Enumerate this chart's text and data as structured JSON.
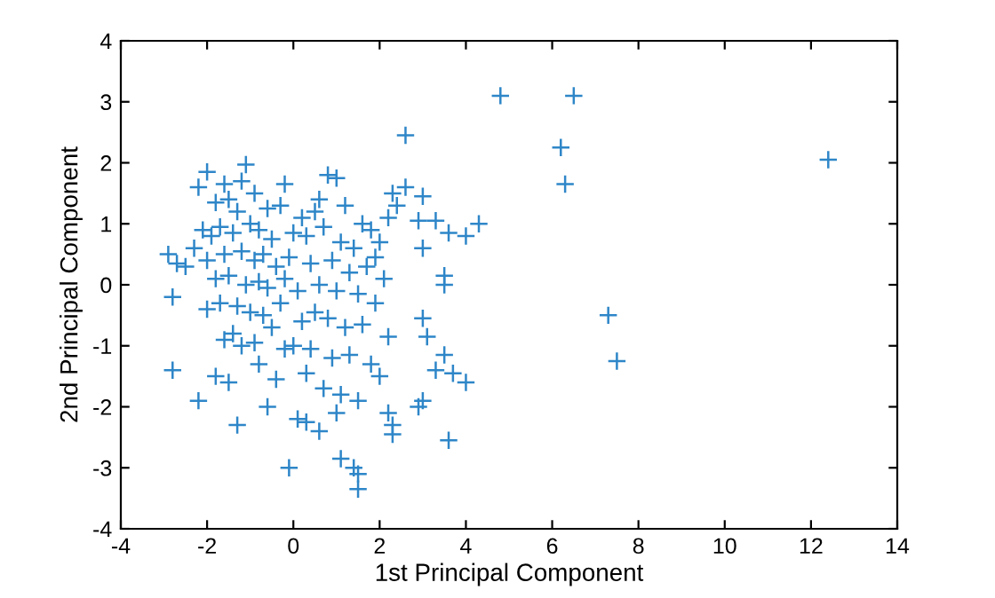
{
  "chart_data": {
    "type": "scatter",
    "xlabel": "1st Principal Component",
    "ylabel": "2nd Principal Component",
    "xlim": [
      -4,
      14
    ],
    "ylim": [
      -4,
      4
    ],
    "xticks": [
      -4,
      -2,
      0,
      2,
      4,
      6,
      8,
      10,
      12,
      14
    ],
    "yticks": [
      -4,
      -3,
      -2,
      -1,
      0,
      1,
      2,
      3,
      4
    ],
    "marker": "cross",
    "grid": false,
    "legend": false,
    "series": [
      {
        "color": "#2e86c8",
        "x": [
          4.8,
          6.5,
          6.2,
          6.3,
          12.4,
          7.3,
          7.5,
          2.6,
          4.3,
          4.0,
          3.6,
          2.3,
          2.6,
          3.0,
          2.9,
          3.3,
          2.2,
          2.4,
          3.0,
          3.5,
          3.5,
          3.0,
          3.1,
          3.5,
          3.7,
          4.0,
          3.3,
          3.0,
          2.9,
          3.6,
          2.2,
          2.3,
          2.3,
          1.4,
          1.5,
          1.5,
          1.1,
          -0.1,
          -2.8,
          -2.2,
          -2.9,
          -2.8,
          -2.5,
          -2.7,
          -1.1,
          -1.6,
          -2.2,
          -2.0,
          -0.2,
          -1.2,
          0.8,
          1.0,
          0.6,
          -0.9,
          -1.5,
          -1.8,
          -1.3,
          -0.6,
          -0.3,
          0.2,
          0.5,
          1.2,
          1.6,
          1.8,
          2.0,
          -2.1,
          -1.9,
          -1.7,
          -1.4,
          -1.0,
          -0.8,
          -0.5,
          0.0,
          0.3,
          0.7,
          1.1,
          1.4,
          1.9,
          -2.3,
          -2.0,
          -1.6,
          -1.2,
          -0.9,
          -0.7,
          -0.4,
          -0.1,
          0.4,
          0.9,
          1.3,
          1.7,
          2.1,
          -1.8,
          -1.5,
          -1.1,
          -0.8,
          -0.6,
          -0.2,
          0.1,
          0.6,
          1.0,
          1.5,
          1.9,
          -2.0,
          -1.7,
          -1.3,
          -1.0,
          -0.7,
          -0.3,
          0.2,
          0.5,
          0.8,
          1.2,
          1.6,
          2.2,
          -1.6,
          -1.4,
          -1.2,
          -0.9,
          -0.5,
          0.0,
          0.4,
          0.9,
          1.3,
          1.8,
          -1.8,
          -1.5,
          -0.8,
          -0.4,
          0.3,
          0.7,
          1.1,
          1.5,
          -0.6,
          0.1,
          0.6,
          1.0,
          0.3,
          -1.3,
          -0.2,
          2.0
        ],
        "values": [
          3.1,
          3.1,
          2.25,
          1.65,
          2.05,
          -0.5,
          -1.25,
          2.45,
          1.0,
          0.8,
          0.85,
          1.5,
          1.6,
          1.45,
          1.05,
          1.05,
          1.1,
          1.3,
          0.6,
          0.15,
          0.0,
          -0.55,
          -0.85,
          -1.15,
          -1.45,
          -1.6,
          -1.4,
          -1.9,
          -2.0,
          -2.55,
          -2.1,
          -2.3,
          -2.45,
          -3.0,
          -3.35,
          -3.1,
          -2.85,
          -3.0,
          -1.4,
          -1.9,
          0.5,
          -0.2,
          0.3,
          0.35,
          1.97,
          1.65,
          1.6,
          1.85,
          1.65,
          1.7,
          1.8,
          1.75,
          1.4,
          1.5,
          1.4,
          1.35,
          1.2,
          1.25,
          1.3,
          1.1,
          1.2,
          1.3,
          1.0,
          0.9,
          0.7,
          0.9,
          0.8,
          0.95,
          0.85,
          1.0,
          0.9,
          0.75,
          0.85,
          0.8,
          0.95,
          0.7,
          0.6,
          0.45,
          0.6,
          0.4,
          0.5,
          0.55,
          0.4,
          0.5,
          0.3,
          0.45,
          0.35,
          0.4,
          0.2,
          0.3,
          0.1,
          0.1,
          0.15,
          0.0,
          0.05,
          -0.05,
          0.1,
          -0.1,
          0.0,
          -0.1,
          -0.15,
          -0.3,
          -0.4,
          -0.3,
          -0.35,
          -0.45,
          -0.5,
          -0.3,
          -0.6,
          -0.45,
          -0.55,
          -0.7,
          -0.65,
          -0.85,
          -0.9,
          -0.8,
          -1.0,
          -0.95,
          -0.7,
          -1.0,
          -1.05,
          -1.2,
          -1.15,
          -1.3,
          -1.5,
          -1.6,
          -1.3,
          -1.55,
          -1.45,
          -1.7,
          -1.8,
          -1.9,
          -2.0,
          -2.2,
          -2.4,
          -2.1,
          -2.25,
          -2.3,
          -1.05,
          -1.5
        ]
      }
    ]
  }
}
